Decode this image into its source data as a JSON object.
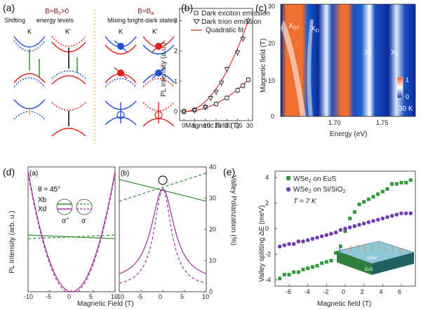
{
  "panels": {
    "a": {
      "letter": "(a)",
      "left_title": "B=B",
      "left_sub": "s",
      "left_cond": ">0",
      "left_caption1": "Shifting",
      "left_caption2": "energy levels",
      "right_title": "B=B",
      "right_sub": "a",
      "right_caption": "Mixing bright-dark states",
      "valley_K": "K",
      "valley_Kp": "K'",
      "colors": {
        "spin_up": "#1f4fd8",
        "spin_down": "#e0201a",
        "arrow_green": "#2ea02e",
        "arrow_yellow": "#e8c000",
        "divider": "#e8a040",
        "title": "#8a1a1a"
      }
    },
    "b": {
      "letter": "(b)",
      "legend": [
        "Dark exciton emission",
        "Dark trion emission",
        "Quadratic fit"
      ],
      "xlabel": "Magnetic field (T)",
      "ylabel": "PL intensity (a.u.)",
      "xticks": [
        "0",
        "5",
        "10",
        "15",
        "20",
        "25",
        "30"
      ],
      "yticks": [
        "0",
        "1",
        "2",
        "3"
      ]
    },
    "c": {
      "letter": "(c)",
      "ylabel": "Magnetic field (T)",
      "xlabel": "Energy (eV)",
      "xticks": [
        "1.70",
        "1.75"
      ],
      "yticks": [
        "0",
        "10",
        "20",
        "30"
      ],
      "labels": [
        "X",
        "X",
        "X",
        "X"
      ],
      "label_subs": [
        "DT",
        "D",
        "T",
        "0"
      ],
      "cbar_ticks": [
        "1",
        "0"
      ],
      "temp": "30 K"
    },
    "d": {
      "letter": "(d)",
      "sub_a": "(a)",
      "sub_b": "(b)",
      "theta": "θ = 45°",
      "xb": "Xb",
      "xd": "Xd",
      "sigma_plus": "σ",
      "sigma_minus": "σ",
      "ylabel_left": "PL Intensity (arb. u.)",
      "ylabel_right": "Valley Polarization (%)",
      "xlabel": "Magnetic Field (T)",
      "xticks_a": [
        "-10",
        "-5",
        "0",
        "5",
        "10"
      ],
      "xticks_b": [
        "-10",
        "-5",
        "0",
        "5",
        "10"
      ],
      "yticks_right": [
        "0",
        "10",
        "20",
        "30",
        "40"
      ]
    },
    "e": {
      "letter": "(e)",
      "legend": [
        "WSe",
        "on EuS",
        "WSe",
        "on Si/SiO"
      ],
      "temp": "T = 7 K",
      "xlabel": "Magnetic field (T)",
      "ylabel": "Valley splitting ΔE (meV)",
      "xticks": [
        "-6",
        "-4",
        "-2",
        "0",
        "2",
        "4",
        "6"
      ],
      "yticks": [
        "-4",
        "-2",
        "0",
        "2",
        "4"
      ],
      "inset_labels": [
        "WSe",
        "EuS"
      ]
    }
  },
  "chart_data": [
    {
      "type": "scatter",
      "panel": "b",
      "xlabel": "Magnetic field (T)",
      "ylabel": "PL intensity (a.u.)",
      "xlim": [
        -2,
        32
      ],
      "ylim": [
        -0.3,
        3.4
      ],
      "series": [
        {
          "name": "Dark exciton emission",
          "marker": "square",
          "x": [
            0,
            5,
            10,
            15,
            20,
            25,
            27.5,
            30
          ],
          "y": [
            0.0,
            0.05,
            0.15,
            0.25,
            0.45,
            0.7,
            0.85,
            1.05
          ]
        },
        {
          "name": "Dark trion emission",
          "marker": "triangle",
          "x": [
            0,
            5,
            10,
            12.5,
            15,
            17.5,
            20,
            25,
            27.5,
            30
          ],
          "y": [
            0.0,
            0.05,
            0.15,
            0.45,
            0.65,
            0.95,
            1.4,
            1.95,
            2.4,
            3.0
          ]
        },
        {
          "name": "Quadratic fit",
          "type": "line",
          "x": [
            0,
            5,
            10,
            15,
            20,
            25,
            30
          ],
          "y_upper": [
            0.0,
            0.08,
            0.33,
            0.75,
            1.33,
            2.08,
            3.0
          ],
          "y_lower": [
            0.0,
            0.03,
            0.12,
            0.27,
            0.47,
            0.73,
            1.05
          ]
        }
      ]
    },
    {
      "type": "heatmap",
      "panel": "c",
      "xlabel": "Energy (eV)",
      "ylabel": "Magnetic field (T)",
      "xlim": [
        1.67,
        1.775
      ],
      "ylim": [
        0,
        30
      ]
    },
    {
      "type": "line",
      "panel": "d-a",
      "xlabel": "Magnetic Field (T)",
      "xlim": [
        -10,
        10
      ],
      "series": [
        {
          "name": "Xb",
          "style": "solid",
          "color": "#2e8b2e",
          "x": [
            -10,
            10
          ],
          "y": [
            0.47,
            0.44
          ]
        },
        {
          "name": "Xb",
          "style": "dashed",
          "color": "#2e8b2e",
          "x": [
            -10,
            10
          ],
          "y": [
            0.44,
            0.47
          ]
        },
        {
          "name": "Xd",
          "style": "solid",
          "color": "#a0309a",
          "x": [
            -10,
            -5,
            0,
            5,
            10
          ],
          "y": [
            1.0,
            0.35,
            0.0,
            0.35,
            1.0
          ]
        },
        {
          "name": "Xd",
          "style": "dashed",
          "color": "#a0309a",
          "x": [
            -10,
            -5,
            0,
            5,
            10
          ],
          "y": [
            1.0,
            0.35,
            0.0,
            0.35,
            1.0
          ]
        }
      ]
    },
    {
      "type": "line",
      "panel": "d-b",
      "xlabel": "Magnetic Field (T)",
      "ylabel": "Valley Polarization (%)",
      "xlim": [
        -10,
        10
      ],
      "ylim": [
        0,
        40
      ],
      "series": [
        {
          "style": "solid",
          "color": "#2e8b2e",
          "x": [
            -10,
            10
          ],
          "y": [
            36,
            29
          ]
        },
        {
          "style": "dashed",
          "color": "#2e8b2e",
          "x": [
            -10,
            10
          ],
          "y": [
            29,
            38
          ]
        },
        {
          "style": "solid",
          "color": "#a0309a",
          "x": [
            -10,
            -5,
            -2,
            0,
            2,
            5,
            10
          ],
          "y": [
            5,
            10,
            22,
            33,
            22,
            10,
            5
          ]
        },
        {
          "style": "dashed",
          "color": "#a0309a",
          "x": [
            -10,
            -5,
            -2,
            0,
            2,
            5,
            10
          ],
          "y": [
            2,
            6,
            16,
            33,
            16,
            6,
            2
          ]
        }
      ]
    },
    {
      "type": "scatter",
      "panel": "e",
      "xlabel": "Magnetic field (T)",
      "ylabel": "Valley splitting ΔE (meV)",
      "xlim": [
        -7.5,
        7.5
      ],
      "ylim": [
        -4.5,
        4.5
      ],
      "series": [
        {
          "name": "WSe2 on EuS",
          "marker": "square",
          "color": "#2e9a3a",
          "x": [
            -7,
            -6.5,
            -6,
            -5.5,
            -5,
            -4.5,
            -4,
            -3.5,
            -3,
            -2.5,
            -2,
            -1.5,
            -1,
            -0.5,
            0,
            0.5,
            1,
            1.5,
            2,
            2.5,
            3,
            3.5,
            4,
            4.5,
            5,
            5.5,
            6,
            6.5,
            7
          ],
          "y": [
            -3.9,
            -3.6,
            -3.6,
            -3.4,
            -3.4,
            -3.2,
            -3.1,
            -3.0,
            -2.9,
            -2.7,
            -2.6,
            -2.5,
            -1.9,
            -1.4,
            -0.2,
            0.8,
            1.3,
            1.9,
            2.1,
            2.3,
            2.5,
            2.7,
            2.9,
            3.1,
            3.5,
            3.5,
            3.6,
            3.6,
            3.8
          ]
        },
        {
          "name": "WSe2 on Si/SiO2",
          "marker": "circle",
          "color": "#7040b0",
          "x": [
            -7,
            -6.5,
            -6,
            -5.5,
            -5,
            -4.5,
            -4,
            -3.5,
            -3,
            -2.5,
            -2,
            -1.5,
            -1,
            -0.5,
            0,
            0.5,
            1,
            1.5,
            2,
            2.5,
            3,
            3.5,
            4,
            4.5,
            5,
            5.5,
            6,
            6.5,
            7
          ],
          "y": [
            -1.4,
            -1.3,
            -1.2,
            -1.2,
            -1.0,
            -1.0,
            -0.9,
            -0.8,
            -0.7,
            -0.6,
            -0.5,
            -0.4,
            -0.3,
            -0.1,
            0.0,
            0.1,
            0.2,
            0.3,
            0.4,
            0.5,
            0.6,
            0.7,
            0.8,
            0.9,
            1.0,
            1.1,
            1.2,
            1.2,
            1.2
          ]
        }
      ]
    }
  ]
}
